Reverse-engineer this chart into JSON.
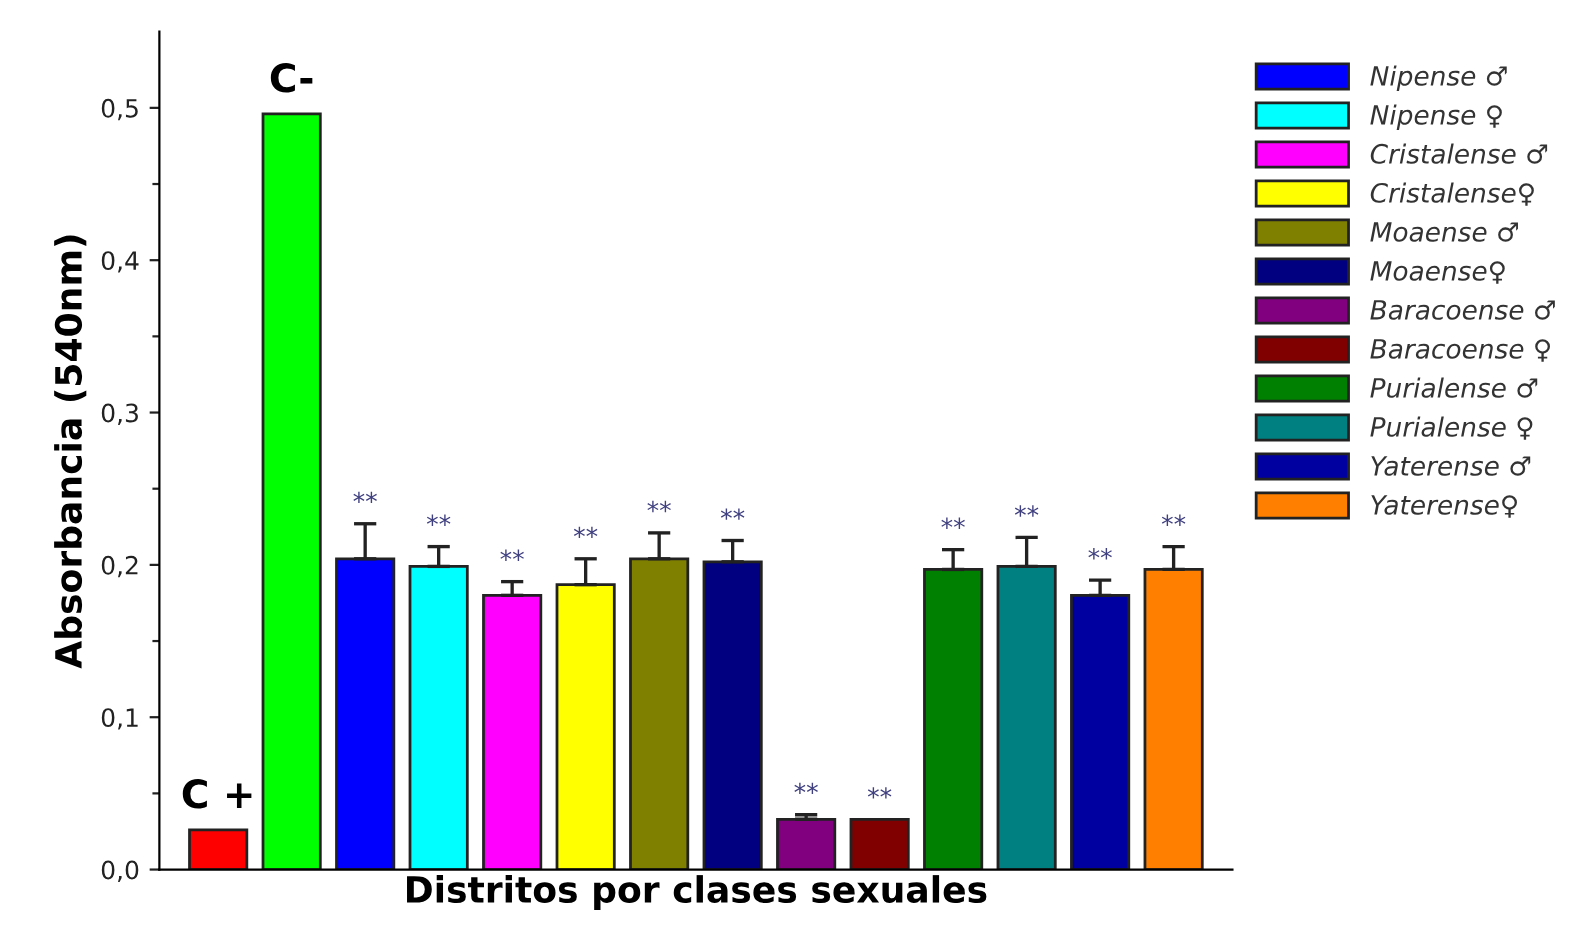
{
  "chart_data": {
    "type": "bar",
    "xlabel": "Distritos por clases sexuales",
    "ylabel": "Absorbancia (540nm)",
    "categories": [
      null,
      null,
      null,
      null,
      null,
      null,
      null,
      null,
      null,
      null,
      null,
      null,
      null,
      null
    ],
    "series": [
      {
        "color": "#ff0000",
        "values": [
          0.026,
          null,
          null,
          null,
          null,
          null,
          null,
          null,
          null,
          null,
          null,
          null,
          null,
          null
        ],
        "value_labels": [
          "C +",
          null,
          null,
          null,
          null,
          null,
          null,
          null,
          null,
          null,
          null,
          null,
          null,
          null
        ]
      },
      {
        "color": "#00ff00",
        "values": [
          null,
          0.496,
          null,
          null,
          null,
          null,
          null,
          null,
          null,
          null,
          null,
          null,
          null,
          null
        ],
        "value_labels": [
          null,
          "C-",
          null,
          null,
          null,
          null,
          null,
          null,
          null,
          null,
          null,
          null,
          null,
          null
        ]
      },
      {
        "name": "Nipense ♂",
        "color": "#0000ff",
        "values": [
          null,
          null,
          0.204,
          null,
          null,
          null,
          null,
          null,
          null,
          null,
          null,
          null,
          null,
          null
        ],
        "errors": [
          null,
          null,
          [
            0.204,
            0.227
          ],
          null,
          null,
          null,
          null,
          null,
          null,
          null,
          null,
          null,
          null,
          null
        ],
        "value_labels": [
          null,
          null,
          "**",
          null,
          null,
          null,
          null,
          null,
          null,
          null,
          null,
          null,
          null,
          null
        ]
      },
      {
        "name": "Nipense ♀",
        "color": "#00ffff",
        "values": [
          null,
          null,
          null,
          0.199,
          null,
          null,
          null,
          null,
          null,
          null,
          null,
          null,
          null,
          null
        ],
        "errors": [
          null,
          null,
          null,
          [
            0.199,
            0.212
          ],
          null,
          null,
          null,
          null,
          null,
          null,
          null,
          null,
          null,
          null
        ],
        "value_labels": [
          null,
          null,
          null,
          "**",
          null,
          null,
          null,
          null,
          null,
          null,
          null,
          null,
          null,
          null
        ]
      },
      {
        "name": "Cristalense ♂",
        "color": "#ff00ff",
        "values": [
          null,
          null,
          null,
          null,
          0.18,
          null,
          null,
          null,
          null,
          null,
          null,
          null,
          null,
          null
        ],
        "errors": [
          null,
          null,
          null,
          null,
          [
            0.18,
            0.189
          ],
          null,
          null,
          null,
          null,
          null,
          null,
          null,
          null,
          null
        ],
        "value_labels": [
          null,
          null,
          null,
          null,
          "**",
          null,
          null,
          null,
          null,
          null,
          null,
          null,
          null,
          null
        ]
      },
      {
        "name": "Cristalense♀",
        "color": "#ffff00",
        "values": [
          null,
          null,
          null,
          null,
          null,
          0.187,
          null,
          null,
          null,
          null,
          null,
          null,
          null,
          null
        ],
        "errors": [
          null,
          null,
          null,
          null,
          null,
          [
            0.187,
            0.204
          ],
          null,
          null,
          null,
          null,
          null,
          null,
          null,
          null
        ],
        "value_labels": [
          null,
          null,
          null,
          null,
          null,
          "**",
          null,
          null,
          null,
          null,
          null,
          null,
          null,
          null
        ]
      },
      {
        "name": "Moaense ♂",
        "color": "#808000",
        "values": [
          null,
          null,
          null,
          null,
          null,
          null,
          0.204,
          null,
          null,
          null,
          null,
          null,
          null,
          null
        ],
        "errors": [
          null,
          null,
          null,
          null,
          null,
          null,
          [
            0.204,
            0.221
          ],
          null,
          null,
          null,
          null,
          null,
          null,
          null
        ],
        "value_labels": [
          null,
          null,
          null,
          null,
          null,
          null,
          "**",
          null,
          null,
          null,
          null,
          null,
          null,
          null
        ]
      },
      {
        "name": "Moaense♀",
        "color": "#000080",
        "values": [
          null,
          null,
          null,
          null,
          null,
          null,
          null,
          0.202,
          null,
          null,
          null,
          null,
          null,
          null
        ],
        "errors": [
          null,
          null,
          null,
          null,
          null,
          null,
          null,
          [
            0.202,
            0.216
          ],
          null,
          null,
          null,
          null,
          null,
          null
        ],
        "value_labels": [
          null,
          null,
          null,
          null,
          null,
          null,
          null,
          "**",
          null,
          null,
          null,
          null,
          null,
          null
        ]
      },
      {
        "name": "Baracoense ♂",
        "color": "#800080",
        "values": [
          null,
          null,
          null,
          null,
          null,
          null,
          null,
          null,
          0.033,
          null,
          null,
          null,
          null,
          null
        ],
        "errors": [
          null,
          null,
          null,
          null,
          null,
          null,
          null,
          null,
          [
            0.033,
            0.036
          ],
          null,
          null,
          null,
          null,
          null
        ],
        "value_labels": [
          null,
          null,
          null,
          null,
          null,
          null,
          null,
          null,
          "**",
          null,
          null,
          null,
          null,
          null
        ]
      },
      {
        "name": "Baracoense ♀",
        "color": "#800000",
        "values": [
          null,
          null,
          null,
          null,
          null,
          null,
          null,
          null,
          null,
          0.033,
          null,
          null,
          null,
          null
        ],
        "value_labels": [
          null,
          null,
          null,
          null,
          null,
          null,
          null,
          null,
          null,
          "**",
          null,
          null,
          null,
          null
        ]
      },
      {
        "name": "Purialense ♂",
        "color": "#008000",
        "values": [
          null,
          null,
          null,
          null,
          null,
          null,
          null,
          null,
          null,
          null,
          0.197,
          null,
          null,
          null
        ],
        "errors": [
          null,
          null,
          null,
          null,
          null,
          null,
          null,
          null,
          null,
          null,
          [
            0.197,
            0.21
          ],
          null,
          null,
          null
        ],
        "value_labels": [
          null,
          null,
          null,
          null,
          null,
          null,
          null,
          null,
          null,
          null,
          "**",
          null,
          null,
          null
        ]
      },
      {
        "name": "Purialense ♀",
        "color": "#008080",
        "values": [
          null,
          null,
          null,
          null,
          null,
          null,
          null,
          null,
          null,
          null,
          null,
          0.199,
          null,
          null
        ],
        "errors": [
          null,
          null,
          null,
          null,
          null,
          null,
          null,
          null,
          null,
          null,
          null,
          [
            0.199,
            0.218
          ],
          null,
          null
        ],
        "value_labels": [
          null,
          null,
          null,
          null,
          null,
          null,
          null,
          null,
          null,
          null,
          null,
          "**",
          null,
          null
        ]
      },
      {
        "name": "Yaterense ♂",
        "color": "#0000a0",
        "values": [
          null,
          null,
          null,
          null,
          null,
          null,
          null,
          null,
          null,
          null,
          null,
          null,
          0.18,
          null
        ],
        "errors": [
          null,
          null,
          null,
          null,
          null,
          null,
          null,
          null,
          null,
          null,
          null,
          null,
          [
            0.18,
            0.19
          ],
          null
        ],
        "value_labels": [
          null,
          null,
          null,
          null,
          null,
          null,
          null,
          null,
          null,
          null,
          null,
          null,
          "**",
          null
        ]
      },
      {
        "name": "Yaterense♀",
        "color": "#ff8000",
        "values": [
          null,
          null,
          null,
          null,
          null,
          null,
          null,
          null,
          null,
          null,
          null,
          null,
          null,
          0.197
        ],
        "errors": [
          null,
          null,
          null,
          null,
          null,
          null,
          null,
          null,
          null,
          null,
          null,
          null,
          null,
          [
            0.197,
            0.212
          ]
        ],
        "value_labels": [
          null,
          null,
          null,
          null,
          null,
          null,
          null,
          null,
          null,
          null,
          null,
          null,
          null,
          "**"
        ]
      }
    ],
    "ylim": [
      0,
      0.55
    ],
    "yticks": [
      {
        "value": 0,
        "label": "0,0"
      },
      {
        "value": 0.05,
        "label": null
      },
      {
        "value": 0.1,
        "label": "0,1"
      },
      {
        "value": 0.15,
        "label": null
      },
      {
        "value": 0.2,
        "label": "0,2"
      },
      {
        "value": 0.25,
        "label": null
      },
      {
        "value": 0.3,
        "label": "0,3"
      },
      {
        "value": 0.35,
        "label": null
      },
      {
        "value": 0.4,
        "label": "0,4"
      },
      {
        "value": 0.45,
        "label": null
      },
      {
        "value": 0.5,
        "label": "0,5"
      }
    ],
    "grid": false,
    "legend": "right"
  }
}
